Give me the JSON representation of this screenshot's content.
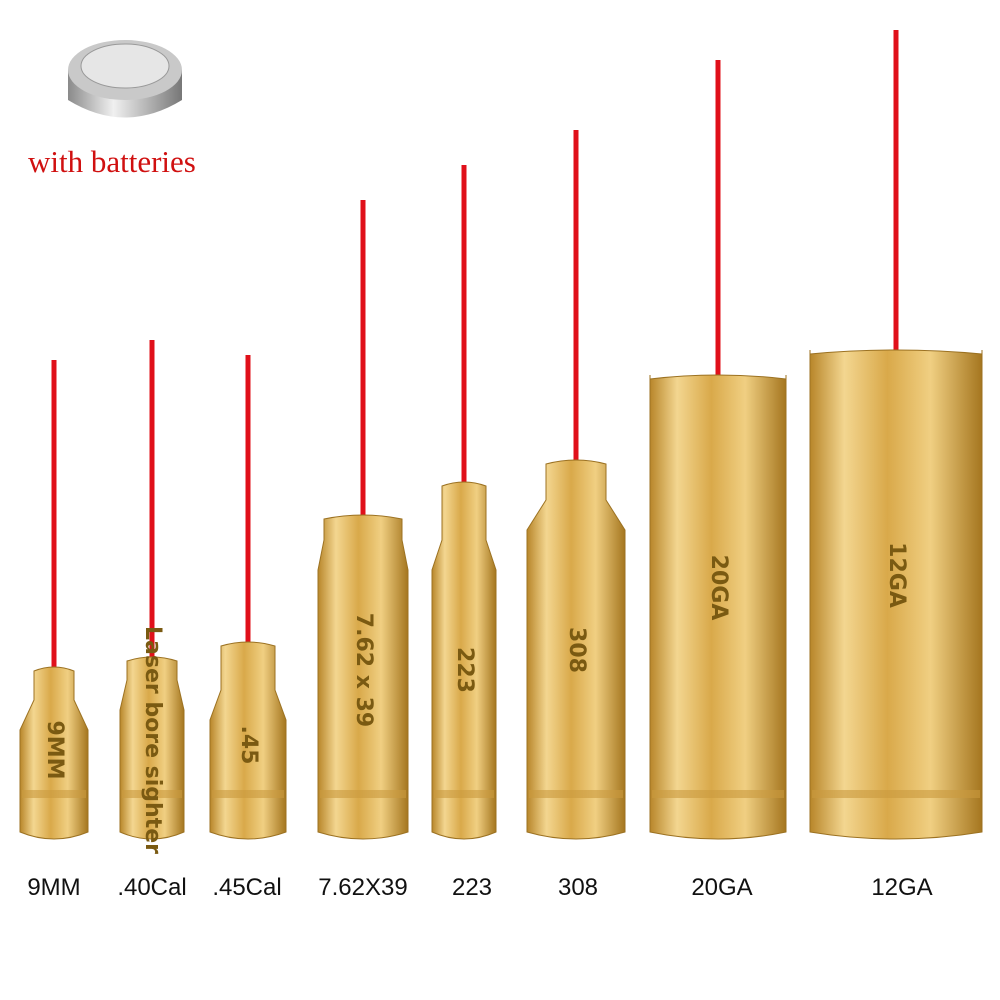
{
  "badge": {
    "text": "with batteries"
  },
  "items": [
    {
      "label": "9MM",
      "engraving": "9MM"
    },
    {
      "label": ".40Cal",
      "engraving": "Laser bore sighter"
    },
    {
      "label": ".45Cal",
      "engraving": ".45"
    },
    {
      "label": "7.62X39",
      "engraving": "7.62 x 39"
    },
    {
      "label": "223",
      "engraving": "223"
    },
    {
      "label": "308",
      "engraving": "308"
    },
    {
      "label": "20GA",
      "engraving": "20GA"
    },
    {
      "label": "12GA",
      "engraving": "12GA"
    }
  ]
}
